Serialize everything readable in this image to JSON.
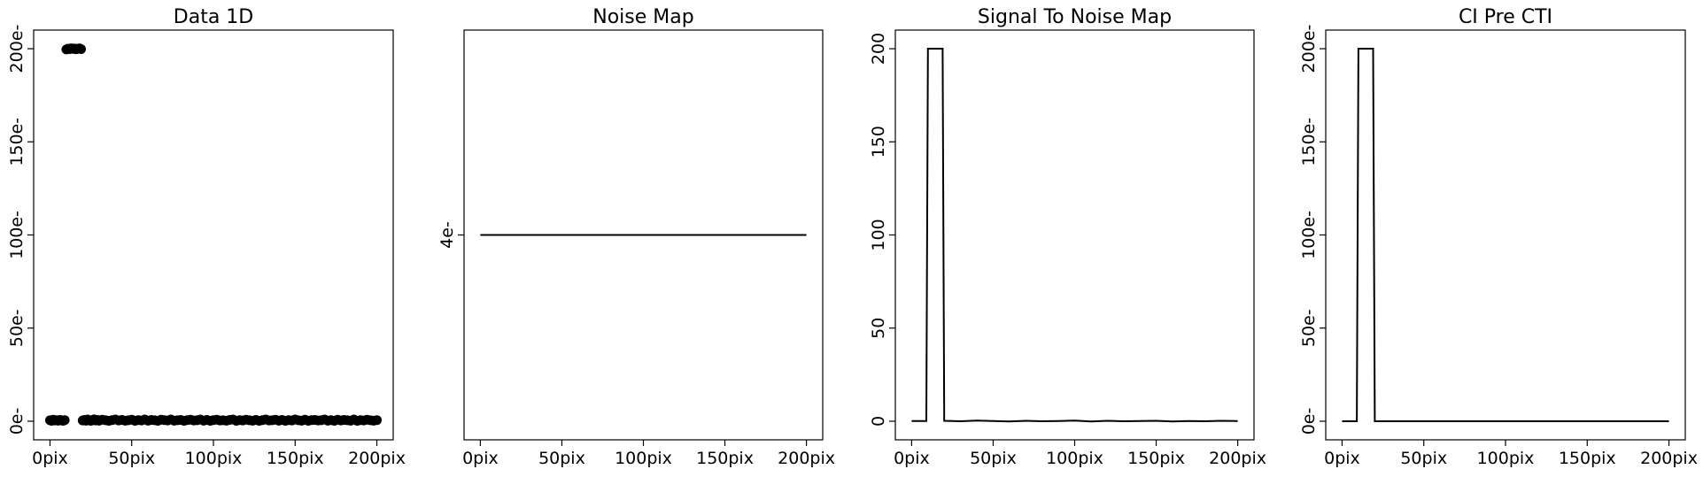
{
  "chart_data": [
    {
      "type": "scatter",
      "title": "Data 1D",
      "xlabel": "",
      "ylabel": "",
      "xlim": [
        -10,
        210
      ],
      "ylim": [
        -10,
        210
      ],
      "xticks": [
        0,
        50,
        100,
        150,
        200
      ],
      "xtick_labels": [
        "0pix",
        "50pix",
        "100pix",
        "150pix",
        "200pix"
      ],
      "yticks": [
        0,
        50,
        100,
        150,
        200
      ],
      "ytick_labels": [
        "0e-",
        "50e-",
        "100e-",
        "150e-",
        "200e-"
      ],
      "grid": false,
      "series": [
        {
          "x": [
            0,
            1,
            2,
            3,
            4,
            5,
            6,
            7,
            8,
            9,
            10,
            11,
            12,
            13,
            14,
            15,
            16,
            17,
            18,
            19,
            20,
            21,
            22,
            23,
            24,
            25,
            26,
            27,
            28,
            29,
            30,
            32,
            34,
            36,
            38,
            40,
            42,
            44,
            46,
            48,
            50,
            52,
            54,
            56,
            58,
            60,
            62,
            64,
            66,
            68,
            70,
            72,
            74,
            76,
            78,
            80,
            82,
            84,
            86,
            88,
            90,
            92,
            94,
            96,
            98,
            100,
            102,
            104,
            106,
            108,
            110,
            112,
            114,
            116,
            118,
            120,
            122,
            124,
            126,
            128,
            130,
            132,
            134,
            136,
            138,
            140,
            142,
            144,
            146,
            148,
            150,
            152,
            154,
            156,
            158,
            160,
            162,
            164,
            166,
            168,
            170,
            172,
            174,
            176,
            178,
            180,
            182,
            184,
            186,
            188,
            190,
            192,
            194,
            196,
            198,
            200
          ],
          "y": [
            0.5,
            0.2,
            0.8,
            0.4,
            0.6,
            0.3,
            0.7,
            0.5,
            0.2,
            0.6,
            199.6,
            200.0,
            199.8,
            200.2,
            199.9,
            200.1,
            199.7,
            200.0,
            200.2,
            199.8,
            0.4,
            0.7,
            0.3,
            0.9,
            0.5,
            0.2,
            0.6,
            1.0,
            0.4,
            0.7,
            0.3,
            0.8,
            0.5,
            0.2,
            0.6,
            0.9,
            0.4,
            0.7,
            0.3,
            0.5,
            0.8,
            0.2,
            0.6,
            0.4,
            0.9,
            0.3,
            0.7,
            0.5,
            0.2,
            0.8,
            0.6,
            0.4,
            0.9,
            0.3,
            0.5,
            0.7,
            0.2,
            0.6,
            0.8,
            0.4,
            0.5,
            0.9,
            0.3,
            0.7,
            0.2,
            0.6,
            0.8,
            0.4,
            0.5,
            0.3,
            0.7,
            0.9,
            0.2,
            0.6,
            0.4,
            0.8,
            0.5,
            0.3,
            0.7,
            0.2,
            0.6,
            0.9,
            0.4,
            0.5,
            0.8,
            0.3,
            0.7,
            0.2,
            0.6,
            0.4,
            0.9,
            0.5,
            0.3,
            0.8,
            0.2,
            0.6,
            0.7,
            0.4,
            0.5,
            0.9,
            0.3,
            0.6,
            0.2,
            0.8,
            0.4,
            0.7,
            0.5,
            0.3,
            0.9,
            0.2,
            0.6,
            0.4,
            0.8,
            0.5,
            0.3,
            0.6
          ],
          "color": "#000000"
        }
      ]
    },
    {
      "type": "line",
      "title": "Noise Map",
      "xlabel": "",
      "ylabel": "",
      "xlim": [
        -10,
        210
      ],
      "ylim": [
        3.0,
        5.0
      ],
      "xticks": [
        0,
        50,
        100,
        150,
        200
      ],
      "xtick_labels": [
        "0pix",
        "50pix",
        "100pix",
        "150pix",
        "200pix"
      ],
      "yticks": [
        4
      ],
      "ytick_labels": [
        "4e-"
      ],
      "grid": false,
      "series": [
        {
          "x": [
            0,
            200
          ],
          "y": [
            4,
            4
          ],
          "color": "#000000"
        }
      ]
    },
    {
      "type": "line",
      "title": "Signal To Noise Map",
      "xlabel": "",
      "ylabel": "",
      "xlim": [
        -10,
        210
      ],
      "ylim": [
        -10,
        210
      ],
      "xticks": [
        0,
        50,
        100,
        150,
        200
      ],
      "xtick_labels": [
        "0pix",
        "50pix",
        "100pix",
        "150pix",
        "200pix"
      ],
      "yticks": [
        0,
        50,
        100,
        150,
        200
      ],
      "ytick_labels": [
        "0",
        "50",
        "100",
        "150",
        "200"
      ],
      "grid": false,
      "series": [
        {
          "x": [
            0,
            9,
            10,
            19,
            20,
            30,
            40,
            50,
            60,
            70,
            80,
            90,
            100,
            110,
            120,
            130,
            140,
            150,
            160,
            170,
            180,
            190,
            200
          ],
          "y": [
            0.1,
            0.1,
            200,
            200,
            0.2,
            0.0,
            0.3,
            0.1,
            -0.1,
            0.2,
            0.0,
            0.1,
            0.3,
            -0.1,
            0.2,
            0.0,
            0.1,
            0.2,
            -0.1,
            0.1,
            0.0,
            0.2,
            0.1
          ],
          "color": "#000000"
        }
      ]
    },
    {
      "type": "line",
      "title": "CI Pre CTI",
      "xlabel": "",
      "ylabel": "",
      "xlim": [
        -10,
        210
      ],
      "ylim": [
        -10,
        210
      ],
      "xticks": [
        0,
        50,
        100,
        150,
        200
      ],
      "xtick_labels": [
        "0pix",
        "50pix",
        "100pix",
        "150pix",
        "200pix"
      ],
      "yticks": [
        0,
        50,
        100,
        150,
        200
      ],
      "ytick_labels": [
        "0e-",
        "50e-",
        "100e-",
        "150e-",
        "200e-"
      ],
      "grid": false,
      "series": [
        {
          "x": [
            0,
            9,
            10,
            19,
            20,
            200
          ],
          "y": [
            0,
            0,
            200,
            200,
            0,
            0
          ],
          "color": "#000000"
        }
      ]
    }
  ]
}
